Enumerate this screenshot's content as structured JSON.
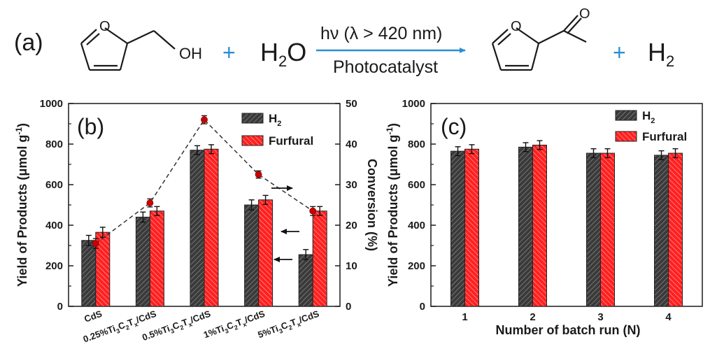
{
  "scheme": {
    "panel_label": "(a)",
    "reactant_group": "OH",
    "furan_o": "O",
    "plus1": "+",
    "water": "H",
    "water_sub": "2",
    "water_o": "O",
    "arrow_top_pre": "hν (λ > 420 nm)",
    "arrow_bottom": "Photocatalyst",
    "product_ring_o": "O",
    "product_carbonyl_o": "O",
    "plus2": "+",
    "hydrogen": "H",
    "hydrogen_sub": "2",
    "colors": {
      "plus": "#2b8fd4",
      "arrow": "#2b8fd4",
      "text": "#1a1a1a"
    }
  },
  "chart_data": [
    {
      "type": "bar",
      "panel_label": "(b)",
      "categories": [
        "CdS",
        "0.25%Ti3C2Tx/CdS",
        "0.5%Ti3C2Tx/CdS",
        "1%Ti3C2Tx/CdS",
        "5%Ti3C2Tx/CdS"
      ],
      "category_labels": [
        {
          "pre": "CdS",
          "parts": []
        },
        {
          "pre": "0.25%Ti",
          "parts": [
            "3",
            "C",
            "2",
            "T",
            "x",
            "/CdS"
          ]
        },
        {
          "pre": "0.5%Ti",
          "parts": [
            "3",
            "C",
            "2",
            "T",
            "x",
            "/CdS"
          ]
        },
        {
          "pre": "1%Ti",
          "parts": [
            "3",
            "C",
            "2",
            "T",
            "x",
            "/CdS"
          ]
        },
        {
          "pre": "5%Ti",
          "parts": [
            "3",
            "C",
            "2",
            "T",
            "x",
            "/CdS"
          ]
        }
      ],
      "series": [
        {
          "name": "H",
          "name_sub": "2",
          "values": [
            325,
            440,
            770,
            500,
            255
          ],
          "errors": [
            25,
            25,
            22,
            25,
            25
          ],
          "color": "#3a3a3a"
        },
        {
          "name": "Furfural",
          "values": [
            365,
            470,
            775,
            525,
            470
          ],
          "errors": [
            25,
            22,
            22,
            22,
            22
          ],
          "color": "#ff2020"
        }
      ],
      "conversion": {
        "values": [
          15.5,
          25.5,
          46,
          32.5,
          23.5
        ],
        "errors": [
          1.2,
          1.0,
          1.0,
          0.9,
          1.1
        ],
        "color": "#cc0000"
      },
      "ylabel": "Yield of Products (μmol g",
      "ylabel_sup": "-1",
      "ylabel_close": ")",
      "y2label": "Conversion (%)",
      "ylim": [
        0,
        1000
      ],
      "y2lim": [
        0,
        50
      ],
      "yticks": [
        "0",
        "200",
        "400",
        "600",
        "800",
        "1000"
      ],
      "y2ticks": [
        "0",
        "10",
        "20",
        "30",
        "40",
        "50"
      ],
      "legend": "top-right"
    },
    {
      "type": "bar",
      "panel_label": "(c)",
      "categories": [
        "1",
        "2",
        "3",
        "4"
      ],
      "series": [
        {
          "name": "H",
          "name_sub": "2",
          "values": [
            765,
            785,
            755,
            745
          ],
          "errors": [
            22,
            22,
            22,
            22
          ],
          "color": "#3a3a3a"
        },
        {
          "name": "Furfural",
          "values": [
            775,
            795,
            755,
            755
          ],
          "errors": [
            22,
            22,
            22,
            22
          ],
          "color": "#ff2020"
        }
      ],
      "xlabel": "Number of batch run (N)",
      "ylabel": "Yield of Products (μmol g",
      "ylabel_sup": "-1",
      "ylabel_close": ")",
      "ylim": [
        0,
        1000
      ],
      "yticks": [
        "0",
        "200",
        "400",
        "600",
        "800",
        "1000"
      ],
      "legend": "top-right"
    }
  ]
}
